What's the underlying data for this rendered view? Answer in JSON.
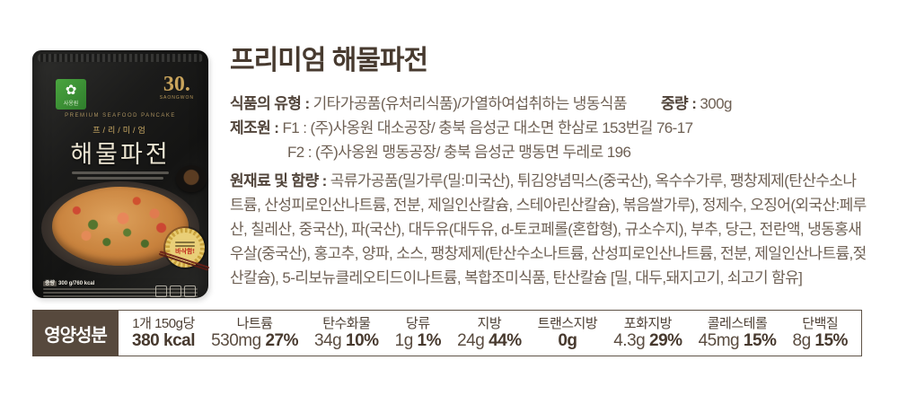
{
  "product": {
    "title": "프리미엄 해물파전",
    "info": {
      "food_type_label": "식품의 유형 :",
      "food_type_value": "기타가공품(유처리식품)/가열하여섭취하는 냉동식품",
      "weight_label": "중량 :",
      "weight_value": "300g",
      "manufacturer_label": "제조원 :",
      "manufacturer_f1": "F1 : (주)사옹원 대소공장/ 충북 음성군 대소면 한삼로 153번길 76-17",
      "manufacturer_f2": "F2 : (주)사옹원 맹동공장/ 충북 음성군 맹동면 두레로 196",
      "ingredients_label": "원재료 및 함량 :",
      "ingredients_value": "곡류가공품(밀가루(밀:미국산), 튀김양념믹스(중국산), 옥수수가루, 팽창제제(탄산수소나트륨, 산성피로인산나트륨, 전분, 제일인산칼슘, 스테아린산칼슘), 볶음쌀가루), 정제수, 오징어(외국산:페루산, 칠레산, 중국산), 파(국산), 대두유(대두유, d-토코페롤(혼합형), 규소수지), 부추, 당근, 전란액, 냉동홍새우살(중국산), 홍고추, 양파, 소스, 팽창제제(탄산수소나트륨, 산성피로인산나트륨, 전분, 제일인산나트륨,젖산칼슘), 5-리보뉴클레오티드이나트륨, 복합조미식품, 탄산칼슘 [밀, 대두,돼지고기, 쇠고기 함유]"
    }
  },
  "package": {
    "logo_text": "사옹원",
    "anniversary_number": "30.",
    "anniversary_sub": "SAONGWON",
    "arc_text": "PREMIUM SEAFOOD PANCAKE",
    "premium_text": "프/리/미/엄",
    "product_name": "해물파전",
    "weight_tag": "중량",
    "weight_info": "300 g/760 kcal",
    "badge_text": "바삭함!"
  },
  "nutrition": {
    "header": "영양성분",
    "items": [
      {
        "name": "1개 150g당",
        "value": "",
        "pct": "380 kcal"
      },
      {
        "name": "나트륨",
        "value": "530mg",
        "pct": "27%"
      },
      {
        "name": "탄수화물",
        "value": "34g",
        "pct": "10%"
      },
      {
        "name": "당류",
        "value": "1g",
        "pct": "1%"
      },
      {
        "name": "지방",
        "value": "24g",
        "pct": "44%"
      },
      {
        "name": "트랜스지방",
        "value": "",
        "pct": "0g"
      },
      {
        "name": "포화지방",
        "value": "4.3g",
        "pct": "29%"
      },
      {
        "name": "콜레스테롤",
        "value": "45mg",
        "pct": "15%"
      },
      {
        "name": "단백질",
        "value": "8g",
        "pct": "15%"
      }
    ]
  },
  "colors": {
    "title_brown": "#473a2f",
    "body_brown": "#6e6054",
    "nutrition_box": "#57493d",
    "package_black": "#1b1b1a",
    "gold": "#c9a45c",
    "logo_green": "#3f9b38"
  }
}
